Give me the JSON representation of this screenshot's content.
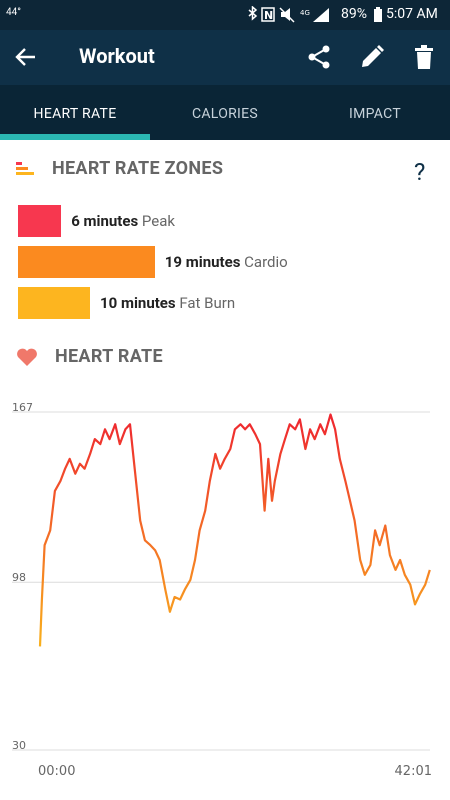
{
  "status_bar": {
    "temperature": "44°",
    "battery": "89%",
    "time": "5:07 AM"
  },
  "app_bar": {
    "title": "Workout"
  },
  "tabs": [
    "HEART RATE",
    "CALORIES",
    "IMPACT"
  ],
  "zones_section": {
    "title": "HEART RATE ZONES",
    "help": "?",
    "zones": [
      {
        "minutes": 6,
        "unit": "minutes",
        "name": "Peak",
        "color": "#f7374f"
      },
      {
        "minutes": 19,
        "unit": "minutes",
        "name": "Cardio",
        "color": "#fb8a1f"
      },
      {
        "minutes": 10,
        "unit": "minutes",
        "name": "Fat Burn",
        "color": "#fdb51f"
      }
    ]
  },
  "heart_rate_section": {
    "title": "HEART RATE"
  },
  "chart_data": {
    "type": "line",
    "x": [
      0,
      0.2,
      0.5,
      1.1,
      1.6,
      2.2,
      2.7,
      3.2,
      3.8,
      4.3,
      4.8,
      5.4,
      5.9,
      6.5,
      7.0,
      7.5,
      8.1,
      8.6,
      9.2,
      9.7,
      10.2,
      10.8,
      11.3,
      11.9,
      12.4,
      12.9,
      13.5,
      14.0,
      14.5,
      15.1,
      15.6,
      16.2,
      16.7,
      17.2,
      17.8,
      18.3,
      18.9,
      19.4,
      19.9,
      20.5,
      21.0,
      21.6,
      22.1,
      22.6,
      23.2,
      23.7,
      24.2,
      24.6,
      25.0,
      25.3,
      25.9,
      26.4,
      26.9,
      27.5,
      28.0,
      28.6,
      29.1,
      29.6,
      30.2,
      30.7,
      31.3,
      31.8,
      32.3,
      32.9,
      33.4,
      33.9,
      34.5,
      35.0,
      35.6,
      36.1,
      36.6,
      37.2,
      37.7,
      38.3,
      38.8,
      39.3,
      39.9,
      40.4,
      40.9,
      41.5,
      42.0
    ],
    "values": [
      72,
      91,
      113,
      119,
      135,
      139,
      144,
      148,
      142,
      146,
      144,
      150,
      156,
      154,
      160,
      156,
      162,
      154,
      160,
      162,
      144,
      123,
      115,
      113,
      111,
      107,
      95,
      86,
      92,
      91,
      95,
      99,
      107,
      119,
      127,
      139,
      150,
      144,
      148,
      152,
      160,
      162,
      160,
      162,
      158,
      154,
      127,
      148,
      131,
      139,
      150,
      156,
      162,
      160,
      164,
      152,
      160,
      156,
      162,
      158,
      166,
      160,
      148,
      139,
      131,
      123,
      107,
      101,
      105,
      119,
      113,
      121,
      109,
      103,
      107,
      101,
      97,
      89,
      93,
      97,
      103
    ],
    "colors": [
      "#ee2430",
      "#f9b21c"
    ],
    "xlim": [
      0,
      42.02
    ],
    "xticks": [
      {
        "value": 0,
        "label": "00:00"
      },
      {
        "value": 42.02,
        "label": "42:01"
      }
    ],
    "ylim": [
      30,
      167
    ],
    "yticks": [
      30,
      98,
      167
    ],
    "grid": true
  }
}
